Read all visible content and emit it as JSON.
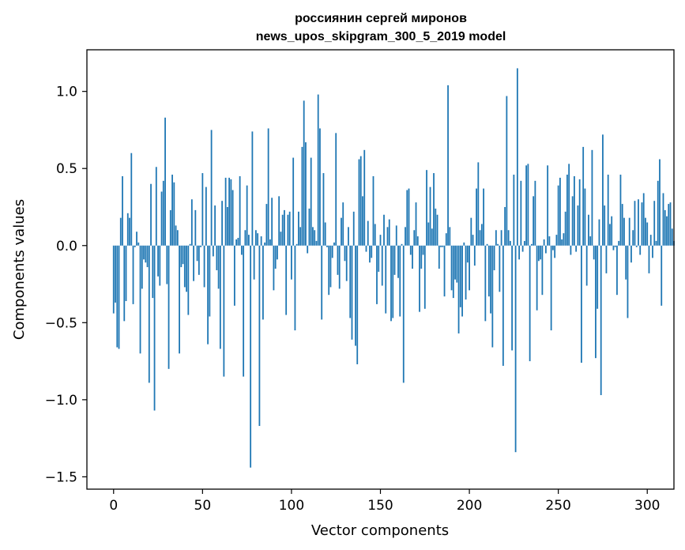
{
  "chart_data": {
    "type": "bar",
    "title_line1": "россиянин сергей миронов",
    "title_line2": "news_upos_skipgram_300_5_2019 model",
    "xlabel": "Vector components",
    "ylabel": "Components values",
    "xlim": [
      -15,
      315
    ],
    "ylim": [
      -1.58,
      1.27
    ],
    "xticks": [
      0,
      50,
      100,
      150,
      200,
      250,
      300
    ],
    "xtick_labels": [
      "0",
      "50",
      "100",
      "150",
      "200",
      "250",
      "300"
    ],
    "yticks": [
      -1.5,
      -1.0,
      -0.5,
      0.0,
      0.5,
      1.0
    ],
    "ytick_labels": [
      "−1.5",
      "−1.0",
      "−0.5",
      "0.0",
      "0.5",
      "1.0"
    ],
    "bar_color": "#1f77b4",
    "grid": false,
    "values": [
      -0.44,
      -0.37,
      -0.66,
      -0.67,
      0.18,
      0.45,
      -0.49,
      -0.36,
      0.21,
      0.18,
      0.6,
      -0.38,
      -0.01,
      0.09,
      0.02,
      -0.7,
      -0.28,
      -0.09,
      -0.11,
      -0.14,
      -0.89,
      0.4,
      -0.34,
      -1.07,
      0.51,
      -0.2,
      -0.26,
      0.35,
      0.42,
      0.83,
      -0.25,
      -0.8,
      0.23,
      0.46,
      0.41,
      0.13,
      0.1,
      -0.7,
      -0.14,
      -0.12,
      -0.27,
      -0.3,
      -0.45,
      0.01,
      0.3,
      -0.23,
      0.23,
      -0.1,
      -0.19,
      -0.01,
      0.47,
      -0.27,
      0.38,
      -0.64,
      -0.46,
      0.75,
      -0.07,
      0.26,
      -0.16,
      -0.28,
      -0.67,
      0.29,
      -0.85,
      0.44,
      0.25,
      0.44,
      0.43,
      0.36,
      -0.39,
      0.04,
      0.05,
      0.45,
      -0.06,
      -0.85,
      0.1,
      0.39,
      0.07,
      -1.44,
      0.74,
      -0.22,
      0.1,
      0.08,
      -1.17,
      0.06,
      -0.48,
      0.02,
      0.27,
      0.76,
      0.04,
      0.31,
      -0.29,
      -0.15,
      -0.09,
      0.32,
      0.09,
      0.2,
      0.23,
      -0.45,
      0.2,
      0.22,
      -0.22,
      0.57,
      -0.55,
      0.01,
      0.22,
      0.12,
      0.64,
      0.94,
      0.67,
      -0.05,
      0.24,
      0.57,
      0.12,
      0.1,
      0.03,
      0.98,
      0.76,
      -0.48,
      0.47,
      0.15,
      -0.01,
      -0.32,
      -0.27,
      -0.08,
      0.02,
      0.73,
      -0.19,
      -0.28,
      0.18,
      0.28,
      -0.1,
      -0.23,
      0.12,
      -0.47,
      -0.61,
      0.22,
      -0.65,
      -0.77,
      0.56,
      0.58,
      0.32,
      0.62,
      -0.04,
      0.16,
      -0.11,
      -0.08,
      0.45,
      0.14,
      -0.38,
      -0.17,
      0.07,
      -0.26,
      0.2,
      -0.44,
      0.12,
      0.17,
      -0.49,
      -0.47,
      -0.19,
      0.13,
      -0.21,
      -0.46,
      0.01,
      -0.89,
      0.12,
      0.36,
      0.37,
      -0.06,
      -0.15,
      0.1,
      0.28,
      0.06,
      -0.43,
      -0.15,
      -0.06,
      -0.41,
      0.49,
      0.15,
      0.38,
      0.11,
      0.47,
      0.24,
      0.2,
      -0.15,
      -0.01,
      -0.01,
      -0.33,
      0.08,
      1.04,
      0.12,
      -0.29,
      -0.34,
      -0.22,
      -0.24,
      -0.57,
      -0.4,
      -0.46,
      0.02,
      -0.35,
      -0.11,
      -0.29,
      0.18,
      0.07,
      -0.13,
      0.37,
      0.54,
      0.1,
      0.14,
      0.37,
      -0.49,
      0.01,
      -0.33,
      -0.44,
      -0.66,
      -0.16,
      0.1,
      0.01,
      -0.3,
      0.1,
      -0.78,
      0.25,
      0.97,
      0.1,
      0.03,
      -0.68,
      0.46,
      -1.34,
      1.15,
      -0.09,
      0.42,
      -0.04,
      0.03,
      0.52,
      0.53,
      -0.75,
      0.01,
      0.32,
      0.42,
      -0.42,
      -0.1,
      -0.09,
      -0.32,
      0.04,
      -0.05,
      0.52,
      0.06,
      -0.55,
      -0.03,
      -0.08,
      0.07,
      0.39,
      0.44,
      0.04,
      0.08,
      0.22,
      0.46,
      0.53,
      -0.06,
      0.32,
      0.45,
      -0.04,
      0.26,
      0.43,
      -0.76,
      0.64,
      0.37,
      -0.26,
      0.2,
      0.06,
      0.62,
      -0.09,
      -0.73,
      -0.41,
      0.17,
      -0.97,
      0.72,
      0.26,
      -0.18,
      0.46,
      0.14,
      0.19,
      -0.03,
      -0.01,
      -0.32,
      0.03,
      0.46,
      0.27,
      0.18,
      -0.22,
      -0.47,
      0.18,
      -0.11,
      0.1,
      0.29,
      -0.01,
      0.3,
      -0.06,
      0.28,
      0.34,
      0.18,
      0.15,
      -0.18,
      0.07,
      -0.08,
      0.29,
      0.03,
      0.42,
      0.56,
      -0.39,
      0.34,
      0.23,
      0.19,
      0.27,
      0.28,
      0.11,
      0.03
    ]
  }
}
